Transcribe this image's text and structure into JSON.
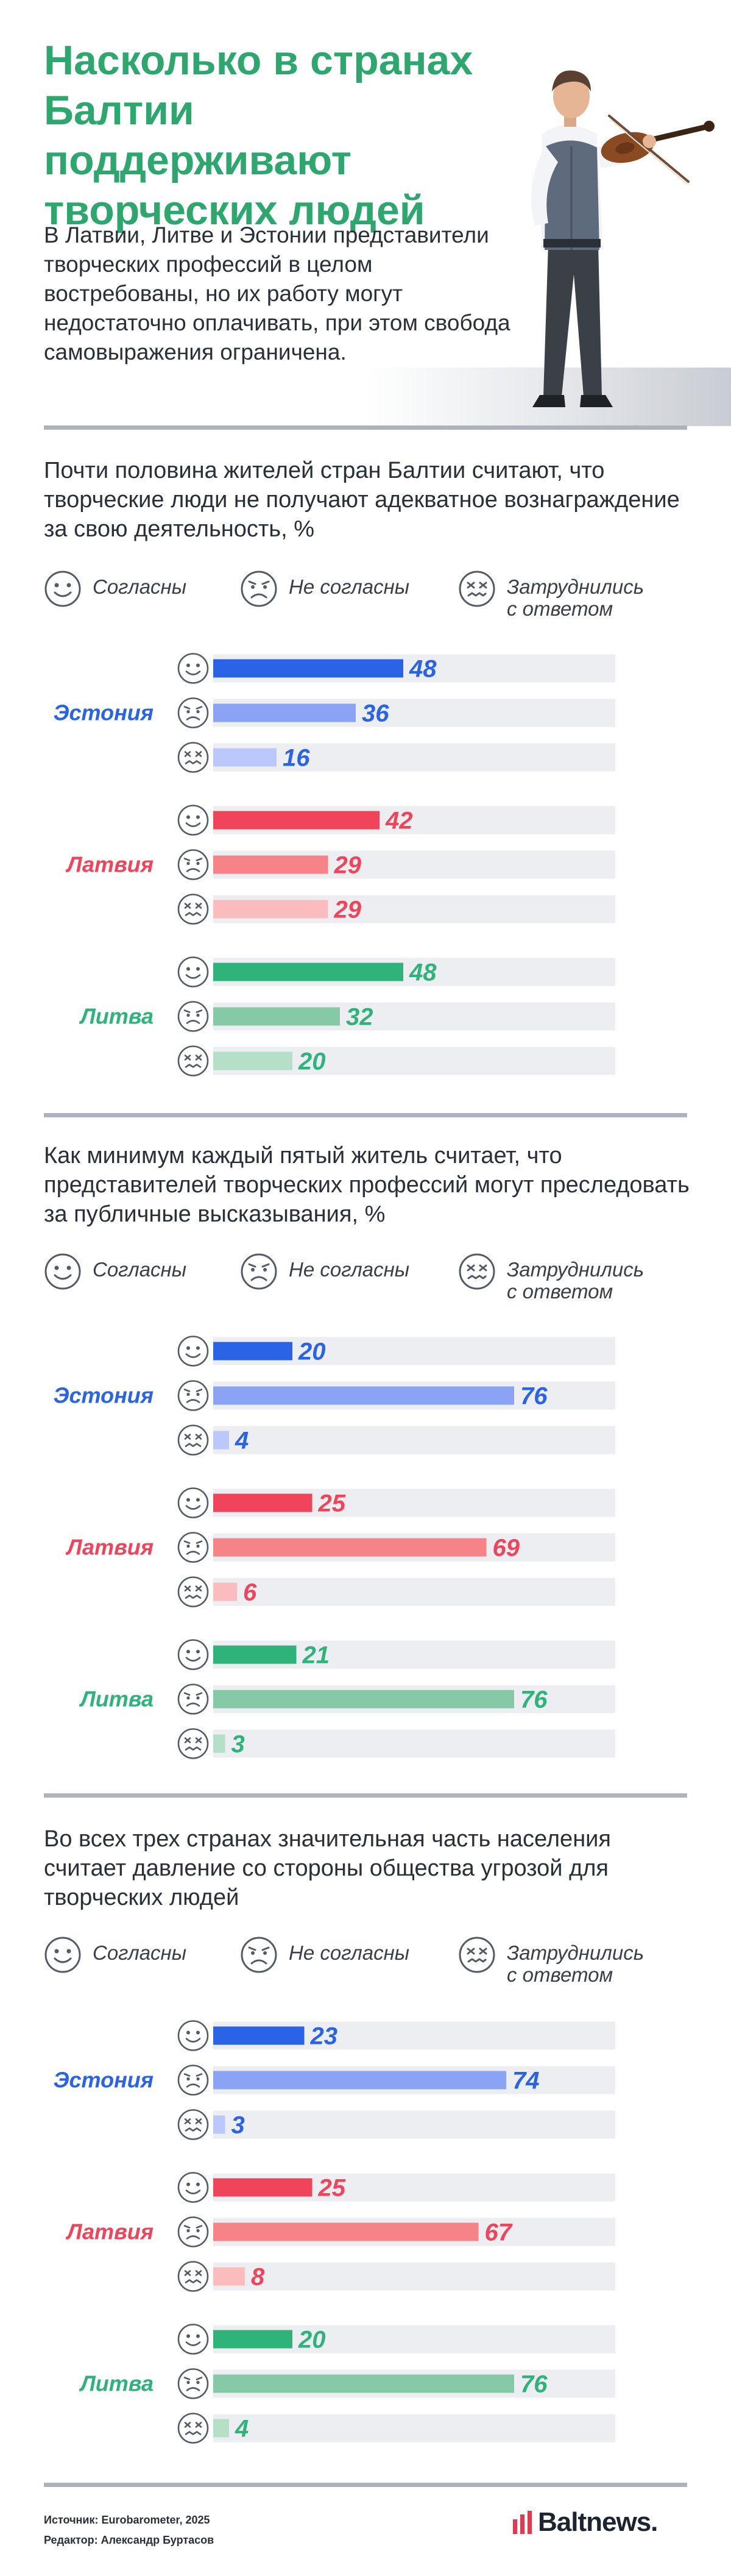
{
  "header": {
    "title": "Насколько в странах Балтии поддерживают творческих людей",
    "intro": "В Латвии, Литве и Эстонии представители творческих профессий в целом востребованы, но их работу могут недостаточно оплачивать, при этом свобода самовыражения ограничена."
  },
  "legend": {
    "agree": "Согласны",
    "disagree": "Не согласны",
    "unsure": "Затруднились\nс ответом"
  },
  "colors": {
    "title": "#2ea76f",
    "estonia": [
      "#2a63e6",
      "#8aa3f4",
      "#bac8fb"
    ],
    "latvia": [
      "#f0445b",
      "#f58388",
      "#fbbcbe"
    ],
    "lithuania": [
      "#2fb37a",
      "#86c9a6",
      "#b6dfc8"
    ],
    "track": "#eceef2"
  },
  "sections": [
    {
      "question": "Почти половина жителей стран Балтии считают, что творческие люди не получают адекватное вознаграждение за свою деятельность, %",
      "chart_data": {
        "type": "bar",
        "orientation": "horizontal",
        "grouped": true,
        "xlim": [
          0,
          100
        ],
        "groups": [
          {
            "label": "Эстония",
            "values": [
              48,
              36,
              16
            ]
          },
          {
            "label": "Латвия",
            "values": [
              42,
              29,
              29
            ]
          },
          {
            "label": "Литва",
            "values": [
              48,
              32,
              20
            ]
          }
        ],
        "series": [
          {
            "name": "Согласны"
          },
          {
            "name": "Не согласны"
          },
          {
            "name": "Затруднились с ответом"
          }
        ]
      }
    },
    {
      "question": "Как минимум каждый пятый житель считает, что представителей творческих профессий могут преследовать за публичные высказывания, %",
      "chart_data": {
        "type": "bar",
        "orientation": "horizontal",
        "grouped": true,
        "xlim": [
          0,
          100
        ],
        "groups": [
          {
            "label": "Эстония",
            "values": [
              20,
              76,
              4
            ]
          },
          {
            "label": "Латвия",
            "values": [
              25,
              69,
              6
            ]
          },
          {
            "label": "Литва",
            "values": [
              21,
              76,
              3
            ]
          }
        ],
        "series": [
          {
            "name": "Согласны"
          },
          {
            "name": "Не согласны"
          },
          {
            "name": "Затруднились с ответом"
          }
        ]
      }
    },
    {
      "question": "Во всех трех странах значительная часть населения считает давление со стороны общества угрозой для творческих людей",
      "chart_data": {
        "type": "bar",
        "orientation": "horizontal",
        "grouped": true,
        "xlim": [
          0,
          100
        ],
        "groups": [
          {
            "label": "Эстония",
            "values": [
              23,
              74,
              3
            ]
          },
          {
            "label": "Латвия",
            "values": [
              25,
              67,
              8
            ]
          },
          {
            "label": "Литва",
            "values": [
              20,
              76,
              4
            ]
          }
        ],
        "series": [
          {
            "name": "Согласны"
          },
          {
            "name": "Не согласны"
          },
          {
            "name": "Затруднились с ответом"
          }
        ]
      }
    }
  ],
  "footer": {
    "source": "Источник: Eurobarometer, 2025",
    "editor": "Редактор: Александр Буртасов",
    "logo": "Baltnews."
  }
}
